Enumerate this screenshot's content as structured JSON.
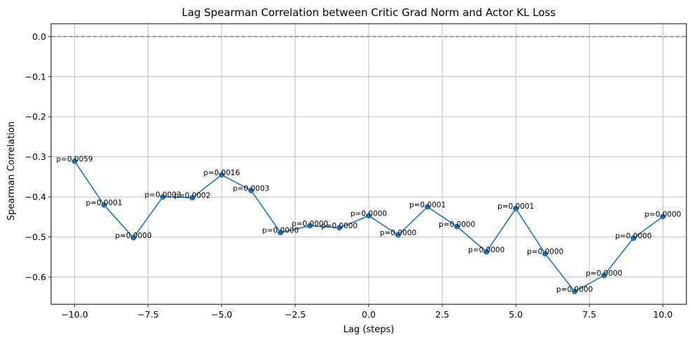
{
  "chart_data": {
    "type": "line",
    "title": "Lag Spearman Correlation between Critic Grad Norm and Actor KL Loss",
    "xlabel": "Lag (steps)",
    "ylabel": "Spearman Correlation",
    "xlim": [
      -10.8,
      10.8
    ],
    "ylim": [
      -0.668,
      0.032
    ],
    "xticks": [
      -10.0,
      -7.5,
      -5.0,
      -2.5,
      0.0,
      2.5,
      5.0,
      7.5,
      10.0
    ],
    "xtick_labels": [
      "−10.0",
      "−7.5",
      "−5.0",
      "−2.5",
      "0.0",
      "2.5",
      "5.0",
      "7.5",
      "10.0"
    ],
    "yticks": [
      0.0,
      -0.1,
      -0.2,
      -0.3,
      -0.4,
      -0.5,
      -0.6
    ],
    "ytick_labels": [
      "0.0",
      "−0.1",
      "−0.2",
      "−0.3",
      "−0.4",
      "−0.5",
      "−0.6"
    ],
    "grid": true,
    "reference_line": {
      "y": 0.0,
      "style": "dashed",
      "color": "#808080"
    },
    "line_color": "#1f77b4",
    "x": [
      -10,
      -9,
      -8,
      -7,
      -6,
      -5,
      -4,
      -3,
      -2,
      -1,
      0,
      1,
      2,
      3,
      4,
      5,
      6,
      7,
      8,
      9,
      10
    ],
    "y": [
      -0.311,
      -0.42,
      -0.502,
      -0.4,
      -0.402,
      -0.345,
      -0.384,
      -0.489,
      -0.472,
      -0.477,
      -0.447,
      -0.495,
      -0.425,
      -0.474,
      -0.537,
      -0.429,
      -0.542,
      -0.636,
      -0.596,
      -0.503,
      -0.449
    ],
    "annotations": [
      "p=0.0059",
      "p=0.0001",
      "p=0.0000",
      "p=0.0003",
      "p=0.0002",
      "p=0.0016",
      "p=0.0003",
      "p=0.0000",
      "p=0.0000",
      "p=0.0000",
      "p=0.0000",
      "p=0.0000",
      "p=0.0001",
      "p=0.0000",
      "p=0.0000",
      "p=0.0001",
      "p=0.0000",
      "p=0.0000",
      "p=0.0000",
      "p=0.0000",
      "p=0.0000"
    ]
  }
}
